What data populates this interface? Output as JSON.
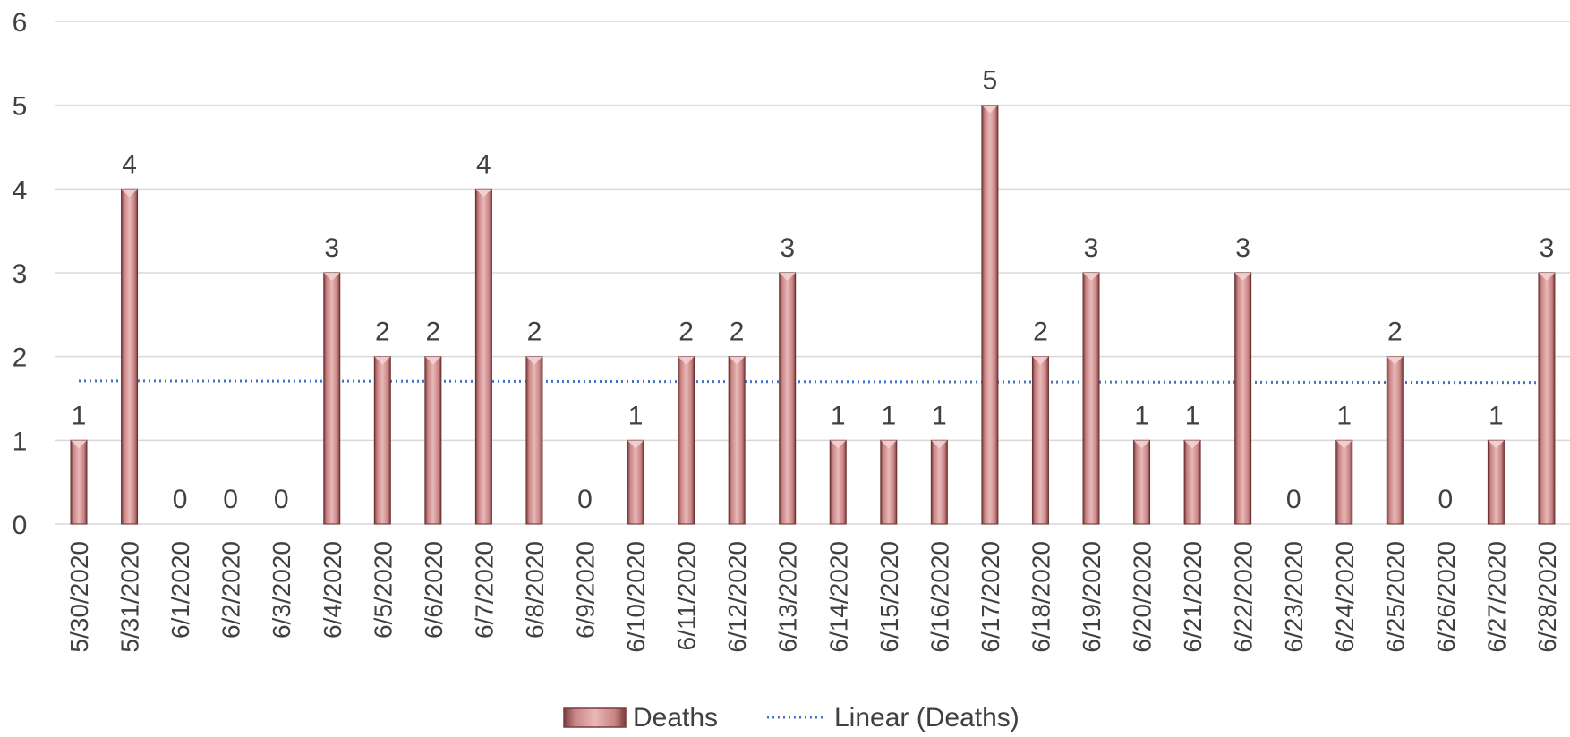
{
  "chart_data": {
    "type": "bar",
    "categories": [
      "5/30/2020",
      "5/31/2020",
      "6/1/2020",
      "6/2/2020",
      "6/3/2020",
      "6/4/2020",
      "6/5/2020",
      "6/6/2020",
      "6/7/2020",
      "6/8/2020",
      "6/9/2020",
      "6/10/2020",
      "6/11/2020",
      "6/12/2020",
      "6/13/2020",
      "6/14/2020",
      "6/15/2020",
      "6/16/2020",
      "6/17/2020",
      "6/18/2020",
      "6/19/2020",
      "6/20/2020",
      "6/21/2020",
      "6/22/2020",
      "6/23/2020",
      "6/24/2020",
      "6/25/2020",
      "6/26/2020",
      "6/27/2020",
      "6/28/2020"
    ],
    "series": [
      {
        "name": "Deaths",
        "values": [
          1,
          4,
          0,
          0,
          0,
          3,
          2,
          2,
          4,
          2,
          0,
          1,
          2,
          2,
          3,
          1,
          1,
          1,
          5,
          2,
          3,
          1,
          1,
          3,
          0,
          1,
          2,
          0,
          1,
          3
        ],
        "color": "#c98585"
      }
    ],
    "trendline": {
      "name": "Linear (Deaths)",
      "type": "linear",
      "start": 1.71,
      "end": 1.69,
      "color": "#4472c4",
      "style": "dotted"
    },
    "y_ticks": [
      "0",
      "1",
      "2",
      "3",
      "4",
      "5",
      "6"
    ],
    "ylim": [
      0,
      6
    ],
    "grid": true,
    "data_labels": true,
    "legend_position": "bottom",
    "title": "",
    "xlabel": "",
    "ylabel": ""
  }
}
